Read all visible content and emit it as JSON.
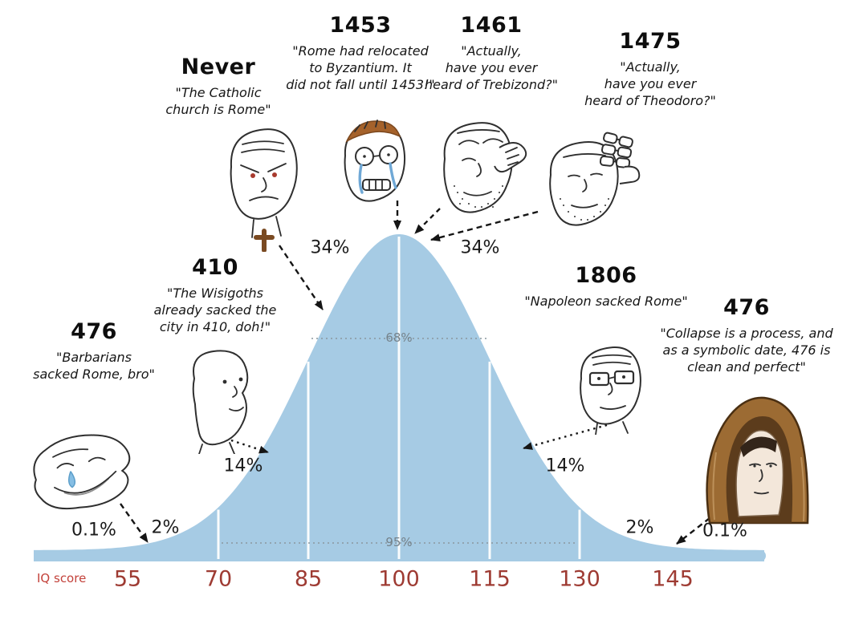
{
  "page": {
    "background": "#ffffff"
  },
  "annotations": [
    {
      "id": "left-476",
      "date": "476",
      "quote": "\"Barbarians\nsacked Rome, bro\"",
      "icon": "smug-crying-wojak-icon"
    },
    {
      "id": "410",
      "date": "410",
      "quote": "\"The Wisigoths\nalready sacked the\ncity in 410, doh!\"",
      "icon": "brainlet-wojak-icon"
    },
    {
      "id": "never",
      "date": "Never",
      "quote": "\"The Catholic\nchurch is Rome\"",
      "icon": "angry-npc-cross-wojak-icon"
    },
    {
      "id": "1453",
      "date": "1453",
      "quote": "\"Rome had relocated\nto Byzantium. It\ndid not fall until 1453!\"",
      "icon": "crying-glasses-wojak-icon"
    },
    {
      "id": "1461",
      "date": "1461",
      "quote": "\"Actually,\nhave you ever\nheard of Trebizond?\"",
      "icon": "beard-glasses-wojak-icon"
    },
    {
      "id": "1475",
      "date": "1475",
      "quote": "\"Actually,\nhave you ever\nheard of Theodoro?\"",
      "icon": "multi-glasses-wojak-icon"
    },
    {
      "id": "1806",
      "date": "1806",
      "quote": "\"Napoleon sacked Rome\"",
      "icon": "glasses-wojak-icon"
    },
    {
      "id": "right-476",
      "date": "476",
      "quote": "\"Collapse is a process, and\nas a symbolic date, 476 is\nclean and perfect\"",
      "icon": "monk-wojak-icon"
    }
  ],
  "chart_data": {
    "type": "area",
    "title": "",
    "xlabel": "IQ score",
    "x_ticks": [
      "55",
      "70",
      "85",
      "100",
      "115",
      "130",
      "145"
    ],
    "distribution": {
      "mean": 100,
      "sd": 15
    },
    "segment_percent_labels": [
      "0.1%",
      "2%",
      "14%",
      "34%",
      "34%",
      "14%",
      "2%",
      "0.1%"
    ],
    "band_labels": [
      {
        "label": "68%",
        "x_range": [
          85,
          115
        ]
      },
      {
        "label": "95%",
        "x_range": [
          70,
          130
        ]
      }
    ],
    "curve_color": "#a6cbe4",
    "axis_tick_color": "#9e3b33",
    "axis_label_color": "#c3423b",
    "grid": false,
    "legend": false
  }
}
